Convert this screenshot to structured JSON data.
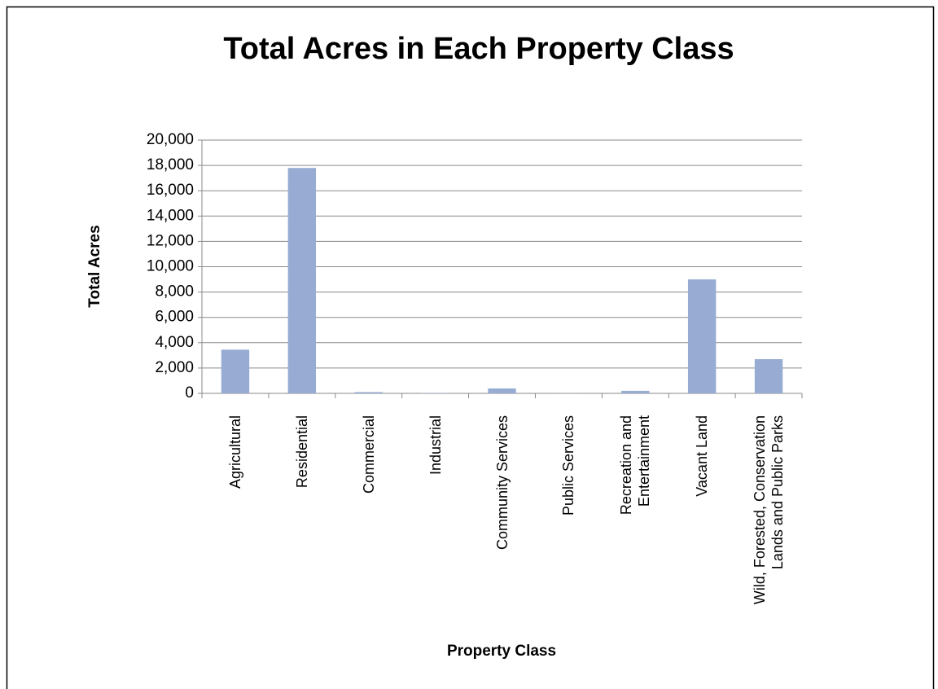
{
  "chart_data": {
    "type": "bar",
    "title": "Total Acres in Each Property Class",
    "x_label": "Property Class",
    "y_label": "Total Acres",
    "categories": [
      "Agricultural",
      "Residential",
      "Commercial",
      "Industrial",
      "Community Services",
      "Public Services",
      "Recreation and\nEntertainment",
      "Vacant Land",
      "Wild, Forested, Conservation\nLands and Public Parks"
    ],
    "values": [
      3450,
      17800,
      100,
      20,
      390,
      10,
      200,
      9000,
      2700
    ],
    "color": "#98acd3",
    "ylim": [
      0,
      20000
    ],
    "yticks": [
      0,
      {
        "value": 2000,
        "label": "2,000"
      },
      {
        "value": 4000,
        "label": "4,000"
      },
      {
        "value": 6000,
        "label": "6,000"
      },
      {
        "value": 8000,
        "label": "8,000"
      },
      {
        "value": 10000,
        "label": "10,000"
      },
      {
        "value": 12000,
        "label": "12,000"
      },
      {
        "value": 14000,
        "label": "14,000"
      },
      {
        "value": 16000,
        "label": "16,000"
      },
      {
        "value": 18000,
        "label": "18,000"
      },
      {
        "value": 20000,
        "label": "20,000"
      }
    ],
    "grid": true
  }
}
